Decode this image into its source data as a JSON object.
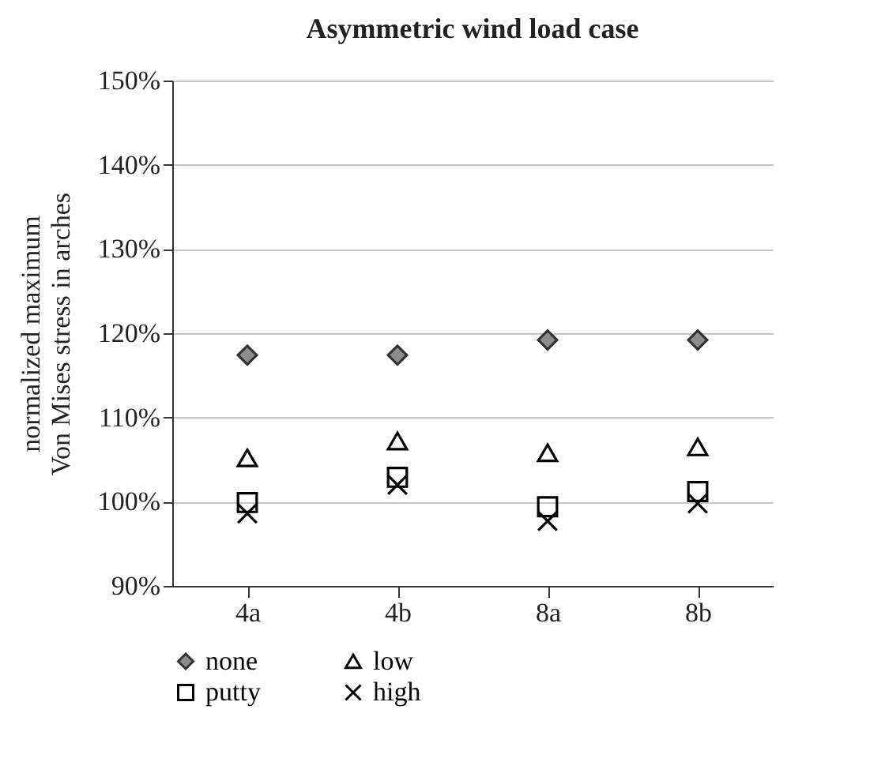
{
  "chart_data": {
    "type": "scatter",
    "title": "Asymmetric wind load case",
    "ylabel": "normalized maximum\nVon Mises stress in arches",
    "categories": [
      "4a",
      "4b",
      "8a",
      "8b"
    ],
    "series": [
      {
        "name": "none",
        "color": "#8c8c8c",
        "marker": "diamond",
        "values": [
          117.4,
          117.4,
          119.2,
          119.2
        ]
      },
      {
        "name": "low",
        "color": "#000000",
        "marker": "triangle",
        "values": [
          105.2,
          107.2,
          105.8,
          106.5
        ]
      },
      {
        "name": "putty",
        "color": "#000000",
        "marker": "square",
        "values": [
          99.9,
          102.9,
          99.4,
          101.2
        ]
      },
      {
        "name": "high",
        "color": "#000000",
        "marker": "cross",
        "values": [
          98.6,
          102.0,
          97.7,
          99.8
        ]
      }
    ],
    "ylim": [
      90,
      150
    ],
    "yticks": [
      {
        "value": 90,
        "label": "90%"
      },
      {
        "value": 100,
        "label": "100%"
      },
      {
        "value": 110,
        "label": "110%"
      },
      {
        "value": 120,
        "label": "120%"
      },
      {
        "value": 130,
        "label": "130%"
      },
      {
        "value": 140,
        "label": "140%"
      },
      {
        "value": 150,
        "label": "150%"
      }
    ],
    "grid": "y",
    "legend": "bottom"
  }
}
